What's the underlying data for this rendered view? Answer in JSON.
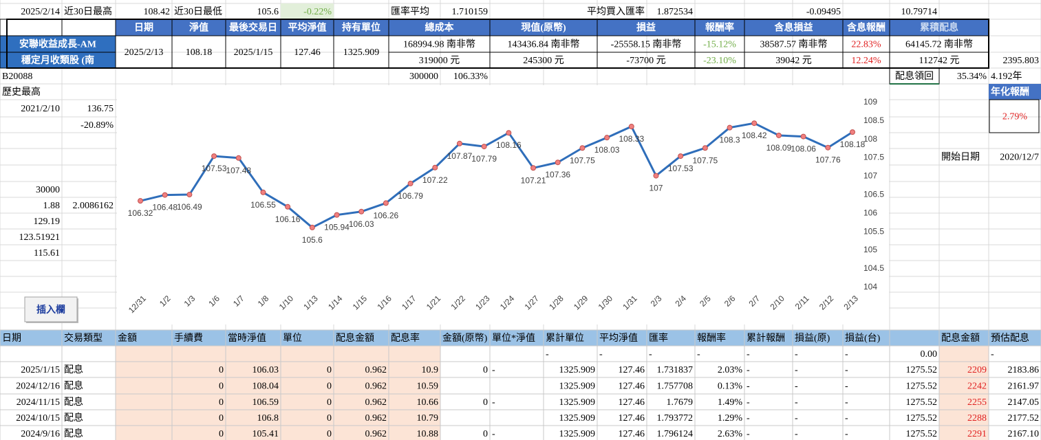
{
  "sheet": [
    {
      "A": "2025/2/14",
      "B": "近30日最高",
      "C": "108.42",
      "D": "近30日最低",
      "E": "105.6",
      "F": "-0.22%",
      "H": "匯率平均",
      "I": "1.710159",
      "L": "平均買入匯率",
      "M": "1.872534",
      "P": "-0.09495",
      "R": "10.79714"
    },
    {
      "C": "日期",
      "D": "淨值",
      "E": "最後交易日",
      "F": "平均淨值",
      "G": "持有單位",
      "H": "總成本",
      "J": "現值(原幣)",
      "L": "損益",
      "N": "報酬率",
      "O": "含息損益",
      "Q": "含息報酬",
      "R": "累積配息"
    },
    {
      "A": "安聯收益成長-AM",
      "C": "2025/2/13",
      "D": "108.18",
      "E": "2025/1/15",
      "F": "127.46",
      "G": "1325.909",
      "H": "168994.98 南非幣",
      "J": "143436.84 南非幣",
      "L": "-25558.15 南非幣",
      "N": "-15.12%",
      "O": "38587.57 南非幣",
      "Q": "22.83%",
      "R": "64145.72 南非幣"
    },
    {
      "A": "穩定月收類股 (南",
      "H": "319000 元",
      "J": "245300 元",
      "L": "-73700 元",
      "N": "-23.10%",
      "O": "39042 元",
      "Q": "12.24%",
      "R": "112742 元",
      "T": "2395.803"
    },
    {
      "A": "B20088",
      "H": "300000",
      "I": "106.33%",
      "R": "配息領回",
      "S": "35.34%",
      "T": "4.192年"
    },
    {
      "A": "歷史最高",
      "T": "年化報酬"
    },
    {
      "A": "2021/2/10",
      "B": "136.75",
      "T": "2.79%"
    },
    {
      "B": "-20.89%"
    },
    {},
    {
      "S": "開始日期",
      "T": "2020/12/7"
    },
    {},
    {
      "A": "30000"
    },
    {
      "A": "1.88",
      "B": "2.0086162"
    },
    {
      "A": "129.19"
    },
    {
      "A": "123.51921"
    },
    {
      "A": "115.61"
    }
  ],
  "button": "插入欄",
  "chart_data": {
    "type": "line",
    "color": "#2f6eba",
    "marker_color": "#f08080",
    "categories": [
      "12/31",
      "1/2",
      "1/3",
      "1/6",
      "1/7",
      "1/8",
      "1/10",
      "1/13",
      "1/14",
      "1/15",
      "1/16",
      "1/17",
      "1/21",
      "1/22",
      "1/23",
      "1/24",
      "1/27",
      "1/28",
      "1/29",
      "1/30",
      "1/31",
      "2/3",
      "2/4",
      "2/5",
      "2/6",
      "2/7",
      "2/10",
      "2/11",
      "2/12",
      "2/13"
    ],
    "values": [
      106.32,
      106.48,
      106.49,
      107.53,
      107.48,
      106.55,
      106.16,
      105.6,
      105.94,
      106.03,
      106.26,
      106.79,
      107.22,
      107.87,
      107.79,
      108.16,
      107.21,
      107.36,
      107.75,
      108.03,
      108.33,
      107,
      107.53,
      107.75,
      108.3,
      108.42,
      108.09,
      108.06,
      107.76,
      108.18
    ],
    "ylim": [
      104,
      109
    ],
    "yticks": [
      104,
      104.5,
      105,
      105.5,
      106,
      106.5,
      107,
      107.5,
      108,
      108.5,
      109
    ],
    "grid": false
  },
  "table": {
    "header": {
      "A": "日期",
      "B": "交易類型",
      "C": "金額",
      "D": "手續費",
      "E": "當時淨值",
      "F": "單位",
      "G": "配息金額",
      "H": "配息率",
      "I": "金額(原幣)",
      "J": "單位*淨值",
      "K": "累計單位",
      "L": "平均淨值",
      "M": "匯率",
      "N": "報酬率",
      "O": "累計報酬",
      "P": "損益(原)",
      "Q": "損益(台)",
      "S": "配息金額",
      "T": "預估配息"
    },
    "rows": [
      {
        "K": "-",
        "L": "-",
        "M": "-",
        "N": "-",
        "O": "-",
        "P": "-",
        "Q": "-",
        "R": "0.00",
        "T": "-"
      },
      {
        "A": "2025/1/15",
        "B": "配息",
        "D": "0",
        "E": "106.03",
        "F": "0",
        "G": "0.962",
        "H": "10.9",
        "I": "0",
        "J": "-",
        "K": "1325.909",
        "L": "127.46",
        "M": "1.731837",
        "N": "2.03%",
        "O": "-",
        "P": "-",
        "Q": "-",
        "R": "1275.52",
        "S": "2209",
        "T": "2183.86"
      },
      {
        "A": "2024/12/16",
        "B": "配息",
        "D": "0",
        "E": "108.04",
        "F": "0",
        "G": "0.962",
        "H": "10.59",
        "K": "1325.909",
        "L": "127.46",
        "M": "1.757708",
        "N": "0.13%",
        "O": "-",
        "P": "-",
        "Q": "-",
        "R": "1275.52",
        "S": "2242",
        "T": "2161.97"
      },
      {
        "A": "2024/11/15",
        "B": "配息",
        "D": "0",
        "E": "106.59",
        "F": "0",
        "G": "0.962",
        "H": "10.66",
        "I": "0",
        "J": "-",
        "K": "1325.909",
        "L": "127.46",
        "M": "1.7679",
        "N": "1.49%",
        "O": "-",
        "P": "-",
        "Q": "-",
        "R": "1275.52",
        "S": "2255",
        "T": "2147.05"
      },
      {
        "A": "2024/10/15",
        "B": "配息",
        "D": "0",
        "E": "106.8",
        "F": "0",
        "G": "0.962",
        "H": "10.79",
        "K": "1325.909",
        "L": "127.46",
        "M": "1.793772",
        "N": "1.29%",
        "O": "-",
        "P": "-",
        "Q": "-",
        "R": "1275.52",
        "S": "2288",
        "T": "2177.52"
      },
      {
        "A": "2024/9/16",
        "B": "配息",
        "D": "0",
        "E": "105.41",
        "F": "0",
        "G": "0.962",
        "H": "10.88",
        "I": "0",
        "J": "-",
        "K": "1325.909",
        "L": "127.46",
        "M": "1.796124",
        "N": "2.63%",
        "O": "-",
        "P": "-",
        "Q": "-",
        "R": "1275.52",
        "S": "2291",
        "T": "2167.10"
      }
    ]
  }
}
